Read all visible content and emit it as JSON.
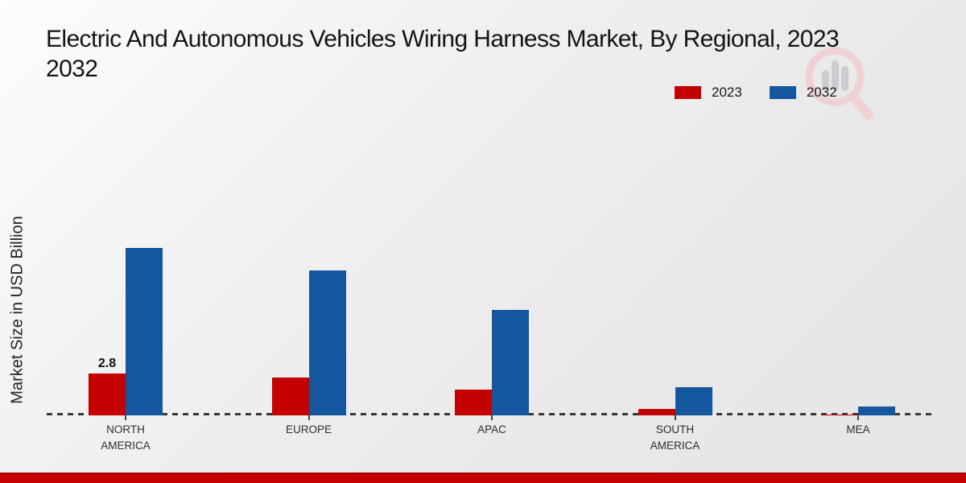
{
  "title": {
    "line1": "Electric And Autonomous Vehicles Wiring Harness Market, By Regional, 2023",
    "line2": "2032"
  },
  "y_axis_label": "Market Size in USD Billion",
  "legend": {
    "position": "top-right",
    "items": [
      {
        "label": "2023",
        "color": "#c40000"
      },
      {
        "label": "2032",
        "color": "#15579e"
      }
    ]
  },
  "chart_data": {
    "type": "bar",
    "title": "Electric And Autonomous Vehicles Wiring Harness Market, By Regional, 2023 2032",
    "xlabel": "",
    "ylabel": "Market Size in USD Billion",
    "categories": [
      "NORTH AMERICA",
      "EUROPE",
      "APAC",
      "SOUTH AMERICA",
      "MEA"
    ],
    "categories_display": [
      "NORTH\nAMERICA",
      "EUROPE",
      "APAC",
      "SOUTH\nAMERICA",
      "MEA"
    ],
    "series": [
      {
        "name": "2023",
        "color": "#c40000",
        "values": [
          2.8,
          2.5,
          1.7,
          0.45,
          0.05
        ],
        "data_labels": [
          "2.8",
          "",
          "",
          "",
          ""
        ]
      },
      {
        "name": "2032",
        "color": "#15579e",
        "values": [
          11.2,
          9.7,
          7.05,
          1.9,
          0.6
        ],
        "data_labels": [
          "",
          "",
          "",
          "",
          ""
        ]
      }
    ],
    "ylim": [
      0,
      12
    ],
    "grid": false,
    "y_axis_ticks_visible": false,
    "baseline_style": "dashed",
    "legend_position": "top-right"
  },
  "watermark": {
    "name": "magnifier-bar-chart-logo"
  },
  "colors": {
    "background_start": "#fdfdfd",
    "background_end": "#e6e6e6",
    "baseline_dash": "#383838",
    "footer": "#c60000",
    "title_text": "#141414",
    "axis_text": "#2e2e2e"
  }
}
